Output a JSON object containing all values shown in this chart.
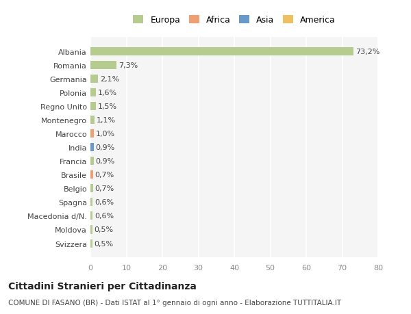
{
  "categories": [
    "Svizzera",
    "Moldova",
    "Macedonia d/N.",
    "Spagna",
    "Belgio",
    "Brasile",
    "Francia",
    "India",
    "Marocco",
    "Montenegro",
    "Regno Unito",
    "Polonia",
    "Germania",
    "Romania",
    "Albania"
  ],
  "values": [
    0.5,
    0.5,
    0.6,
    0.6,
    0.7,
    0.7,
    0.9,
    0.9,
    1.0,
    1.1,
    1.5,
    1.6,
    2.1,
    7.3,
    73.2
  ],
  "labels": [
    "0,5%",
    "0,5%",
    "0,6%",
    "0,6%",
    "0,7%",
    "0,7%",
    "0,9%",
    "0,9%",
    "1,0%",
    "1,1%",
    "1,5%",
    "1,6%",
    "2,1%",
    "7,3%",
    "73,2%"
  ],
  "colors": [
    "#b5cc8e",
    "#b5cc8e",
    "#b5cc8e",
    "#b5cc8e",
    "#b5cc8e",
    "#f0a070",
    "#b5cc8e",
    "#6699cc",
    "#f0a070",
    "#b5cc8e",
    "#b5cc8e",
    "#b5cc8e",
    "#b5cc8e",
    "#b5cc8e",
    "#b5cc8e"
  ],
  "legend_labels": [
    "Europa",
    "Africa",
    "Asia",
    "America"
  ],
  "legend_colors": [
    "#b5cc8e",
    "#f0a070",
    "#6699cc",
    "#f0c060"
  ],
  "title": "Cittadini Stranieri per Cittadinanza",
  "subtitle": "COMUNE DI FASANO (BR) - Dati ISTAT al 1° gennaio di ogni anno - Elaborazione TUTTITALIA.IT",
  "xlim": [
    0,
    80
  ],
  "xticks": [
    0,
    10,
    20,
    30,
    40,
    50,
    60,
    70,
    80
  ],
  "bg_color": "#ffffff",
  "plot_bg_color": "#f5f5f5",
  "grid_color": "#ffffff",
  "bar_height": 0.6
}
